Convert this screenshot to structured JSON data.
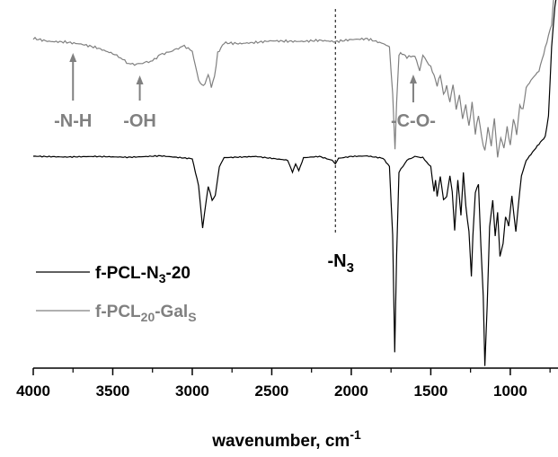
{
  "chart_data": {
    "type": "line",
    "title": "",
    "xlabel": {
      "text": "wavenumber, cm",
      "sup": "-1"
    },
    "ylabel": "",
    "x_reversed": true,
    "xlim": [
      4000,
      700
    ],
    "xticks": [
      4000,
      3500,
      3000,
      2500,
      2000,
      1500,
      1000
    ],
    "grid": false,
    "legend_position": "middle-left",
    "reference_line": {
      "x": 2100,
      "style": "dotted",
      "color": "#000000"
    },
    "series": [
      {
        "name": "f-PCL-N3-20",
        "color": "#000000",
        "legend": {
          "main": "f-PCL-N",
          "sub": "3",
          "tail": "-20"
        },
        "x": [
          4000,
          3800,
          3600,
          3400,
          3200,
          3000,
          2960,
          2935,
          2900,
          2875,
          2855,
          2830,
          2800,
          2600,
          2400,
          2370,
          2350,
          2330,
          2300,
          2200,
          2120,
          2100,
          2080,
          2000,
          1900,
          1800,
          1760,
          1740,
          1727,
          1715,
          1700,
          1650,
          1600,
          1550,
          1500,
          1480,
          1470,
          1460,
          1440,
          1420,
          1400,
          1380,
          1365,
          1350,
          1330,
          1310,
          1295,
          1280,
          1260,
          1245,
          1235,
          1220,
          1200,
          1185,
          1170,
          1160,
          1145,
          1130,
          1110,
          1095,
          1080,
          1065,
          1045,
          1030,
          1010,
          990,
          965,
          950,
          930,
          900,
          860,
          820,
          780,
          760,
          740,
          720,
          700
        ],
        "y": [
          0,
          0.005,
          0,
          0.005,
          0,
          0.01,
          0.15,
          0.36,
          0.15,
          0.22,
          0.2,
          0.05,
          0.01,
          0,
          0.02,
          0.08,
          0.04,
          0.07,
          0.01,
          0,
          0.02,
          0.04,
          0.01,
          0,
          0,
          0.01,
          0.05,
          0.4,
          0.98,
          0.5,
          0.08,
          0.02,
          0,
          0.01,
          0.05,
          0.18,
          0.12,
          0.2,
          0.1,
          0.22,
          0.2,
          0.1,
          0.18,
          0.37,
          0.12,
          0.3,
          0.08,
          0.25,
          0.38,
          0.6,
          0.4,
          0.18,
          0.14,
          0.45,
          0.7,
          1.05,
          0.75,
          0.35,
          0.22,
          0.4,
          0.28,
          0.5,
          0.44,
          0.3,
          0.35,
          0.2,
          0.38,
          0.25,
          0.1,
          0.02,
          -0.02,
          -0.06,
          -0.1,
          -0.2,
          -0.55,
          -0.75,
          -0.85
        ]
      },
      {
        "name": "f-PCL20-GalS",
        "color": "#808080",
        "legend": {
          "main": "f-PCL",
          "sub1": "20",
          "mid": "-Gal",
          "sub2": "S"
        },
        "x": [
          4000,
          3900,
          3800,
          3700,
          3600,
          3500,
          3450,
          3400,
          3350,
          3300,
          3250,
          3200,
          3150,
          3100,
          3050,
          3000,
          2960,
          2940,
          2920,
          2900,
          2880,
          2860,
          2840,
          2800,
          2700,
          2600,
          2500,
          2400,
          2300,
          2200,
          2100,
          2000,
          1900,
          1800,
          1760,
          1740,
          1725,
          1715,
          1700,
          1680,
          1650,
          1600,
          1570,
          1550,
          1500,
          1480,
          1460,
          1440,
          1420,
          1400,
          1380,
          1360,
          1340,
          1320,
          1300,
          1280,
          1260,
          1240,
          1220,
          1200,
          1180,
          1160,
          1140,
          1120,
          1100,
          1080,
          1060,
          1040,
          1020,
          1000,
          980,
          960,
          940,
          920,
          900,
          860,
          820,
          780,
          760,
          740,
          720,
          700
        ],
        "y": [
          0,
          0.005,
          0.02,
          0.03,
          0.05,
          0.09,
          0.12,
          0.15,
          0.16,
          0.15,
          0.13,
          0.1,
          0.08,
          0.06,
          0.04,
          0.08,
          0.25,
          0.3,
          0.28,
          0.22,
          0.3,
          0.24,
          0.08,
          0.03,
          0.02,
          0.02,
          0.01,
          0.01,
          0.01,
          0.01,
          0.01,
          0,
          0,
          0.02,
          0.05,
          0.35,
          0.7,
          0.4,
          0.1,
          0.08,
          0.12,
          0.1,
          0.2,
          0.1,
          0.18,
          0.22,
          0.3,
          0.22,
          0.35,
          0.3,
          0.4,
          0.28,
          0.45,
          0.35,
          0.5,
          0.42,
          0.55,
          0.4,
          0.6,
          0.48,
          0.62,
          0.72,
          0.55,
          0.68,
          0.5,
          0.75,
          0.62,
          0.7,
          0.55,
          0.68,
          0.5,
          0.6,
          0.42,
          0.45,
          0.3,
          0.25,
          0.2,
          0.05,
          -0.02,
          -0.1,
          -0.35,
          -0.55
        ]
      }
    ],
    "annotations": [
      {
        "label": "-N-H",
        "x": 3750,
        "color": "#808080",
        "arrow": true
      },
      {
        "label": "-OH",
        "x": 3330,
        "color": "#808080",
        "arrow": true
      },
      {
        "label": "-C-O-",
        "x": 1610,
        "color": "#808080",
        "arrow": true
      },
      {
        "label": "-N",
        "sub": "3",
        "x": 2100,
        "color": "#000000",
        "arrow": false
      }
    ]
  }
}
